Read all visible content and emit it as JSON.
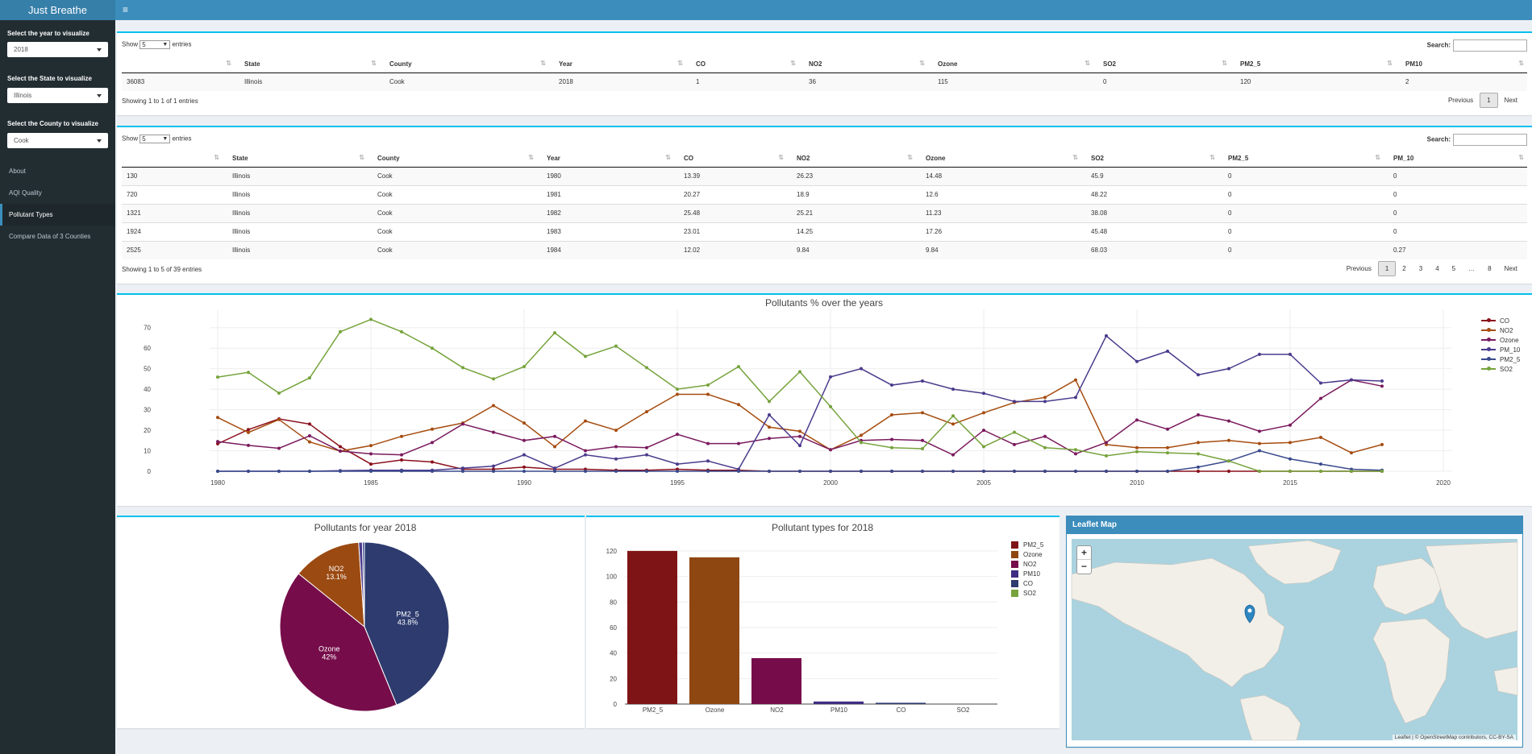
{
  "app": {
    "title": "Just Breathe"
  },
  "sidebar": {
    "year_label": "Select the year to visualize",
    "year_value": "2018",
    "state_label": "Select the State to visualize",
    "state_value": "Illinois",
    "county_label": "Select the County to visualize",
    "county_value": "Cook",
    "menu": [
      {
        "label": "About"
      },
      {
        "label": "AQI Quality"
      },
      {
        "label": "Pollutant Types"
      },
      {
        "label": "Compare Data of 3 Counties"
      }
    ]
  },
  "table1": {
    "show": "Show",
    "entries_value": "5",
    "entries": "entries",
    "search": "Search:",
    "headers": [
      "",
      "State",
      "County",
      "Year",
      "CO",
      "NO2",
      "Ozone",
      "SO2",
      "PM2_5",
      "PM10"
    ],
    "rows": [
      [
        "36083",
        "Illinois",
        "Cook",
        "2018",
        "1",
        "36",
        "115",
        "0",
        "120",
        "2"
      ]
    ],
    "info": "Showing 1 to 1 of 1 entries",
    "pager": [
      "Previous",
      "1",
      "Next"
    ]
  },
  "table2": {
    "show": "Show",
    "entries_value": "5",
    "entries": "entries",
    "search": "Search:",
    "headers": [
      "",
      "State",
      "County",
      "Year",
      "CO",
      "NO2",
      "Ozone",
      "SO2",
      "PM2_5",
      "PM_10"
    ],
    "rows": [
      [
        "130",
        "Illinois",
        "Cook",
        "1980",
        "13.39",
        "26.23",
        "14.48",
        "45.9",
        "0",
        "0"
      ],
      [
        "720",
        "Illinois",
        "Cook",
        "1981",
        "20.27",
        "18.9",
        "12.6",
        "48.22",
        "0",
        "0"
      ],
      [
        "1321",
        "Illinois",
        "Cook",
        "1982",
        "25.48",
        "25.21",
        "11.23",
        "38.08",
        "0",
        "0"
      ],
      [
        "1924",
        "Illinois",
        "Cook",
        "1983",
        "23.01",
        "14.25",
        "17.26",
        "45.48",
        "0",
        "0"
      ],
      [
        "2525",
        "Illinois",
        "Cook",
        "1984",
        "12.02",
        "9.84",
        "9.84",
        "68.03",
        "0",
        "0.27"
      ]
    ],
    "info": "Showing 1 to 5 of 39 entries",
    "pager": [
      "Previous",
      "1",
      "2",
      "3",
      "4",
      "5",
      "…",
      "8",
      "Next"
    ]
  },
  "chart_data": [
    {
      "type": "line",
      "title": "Pollutants % over the years",
      "xlim": [
        1980,
        2020
      ],
      "ylim": [
        0,
        75
      ],
      "xticks": [
        1980,
        1985,
        1990,
        1995,
        2000,
        2005,
        2010,
        2015,
        2020
      ],
      "yticks": [
        0,
        10,
        20,
        30,
        40,
        50,
        60,
        70
      ],
      "legend_position": "top-right",
      "x": [
        1980,
        1981,
        1982,
        1983,
        1984,
        1985,
        1986,
        1987,
        1988,
        1989,
        1990,
        1991,
        1992,
        1993,
        1994,
        1995,
        1996,
        1997,
        1998,
        1999,
        2000,
        2001,
        2002,
        2003,
        2004,
        2005,
        2006,
        2007,
        2008,
        2009,
        2010,
        2011,
        2012,
        2013,
        2014,
        2015,
        2016,
        2017,
        2018
      ],
      "series": [
        {
          "name": "CO",
          "color": "#8b0f1c",
          "values": [
            13.4,
            20.3,
            25.5,
            23.0,
            12.0,
            3.5,
            5.5,
            4.5,
            1,
            1,
            2,
            1,
            1,
            0.5,
            0.5,
            1,
            0.5,
            0.5,
            0,
            0,
            0,
            0,
            0,
            0,
            0,
            0,
            0,
            0,
            0,
            0,
            0,
            0,
            0,
            0,
            0,
            0,
            0,
            0,
            0
          ]
        },
        {
          "name": "NO2",
          "color": "#a64d10",
          "values": [
            26.2,
            18.9,
            25.2,
            14.3,
            9.8,
            12.5,
            17,
            20.5,
            23.5,
            32,
            23.5,
            12,
            24.5,
            20,
            29,
            37.5,
            37.5,
            32.5,
            21.5,
            19.5,
            10.5,
            17.5,
            27.5,
            28.5,
            23,
            28.5,
            33.5,
            36,
            44.5,
            13,
            11.5,
            11.5,
            14,
            15,
            13.5,
            14,
            16.5,
            9,
            13
          ]
        },
        {
          "name": "Ozone",
          "color": "#7a1b5e",
          "values": [
            14.5,
            12.6,
            11.2,
            17.3,
            9.8,
            8.5,
            8,
            14,
            23,
            19,
            15,
            17,
            10,
            12,
            11.5,
            18,
            13.5,
            13.5,
            16,
            17,
            10.5,
            15,
            15.5,
            15,
            8,
            20,
            13,
            17,
            8.5,
            14,
            25,
            20.5,
            27.5,
            24.5,
            19.5,
            22.5,
            35.5,
            44.5,
            41.5
          ]
        },
        {
          "name": "PM_10",
          "color": "#4b3a8c",
          "values": [
            0,
            0,
            0,
            0,
            0.3,
            0.5,
            0.5,
            0.5,
            1.5,
            2.5,
            8,
            1.5,
            8,
            6,
            8,
            3.5,
            5,
            1,
            27.5,
            12.5,
            46,
            50,
            42,
            44,
            40,
            38,
            34,
            34,
            36,
            66,
            53.5,
            58.5,
            47,
            50,
            57,
            57,
            43,
            44.5,
            44
          ]
        },
        {
          "name": "PM2_5",
          "color": "#3a4a8c",
          "values": [
            0,
            0,
            0,
            0,
            0,
            0,
            0,
            0,
            0,
            0,
            0,
            0,
            0,
            0,
            0,
            0,
            0,
            0,
            0,
            0,
            0,
            0,
            0,
            0,
            0,
            0,
            0,
            0,
            0,
            0,
            0,
            0,
            2,
            5,
            10,
            6,
            3.5,
            1,
            0.5
          ]
        },
        {
          "name": "SO2",
          "color": "#76a33c",
          "values": [
            45.9,
            48.2,
            38.1,
            45.5,
            68,
            74,
            68,
            60,
            50.5,
            45,
            51,
            67.5,
            56,
            61,
            50.5,
            40,
            42,
            51,
            34,
            48.5,
            31.5,
            14,
            11.5,
            11,
            27,
            12,
            19,
            11.5,
            10.5,
            7.5,
            9.5,
            9,
            8.5,
            5,
            0,
            0,
            0,
            0,
            0
          ]
        }
      ]
    },
    {
      "type": "pie",
      "title": "Pollutants for year  2018",
      "slices": [
        {
          "label": "PM2_5",
          "value": 43.8,
          "text": "43.8%",
          "color": "#2d3b6e"
        },
        {
          "label": "Ozone",
          "value": 42.0,
          "text": "42%",
          "color": "#760d4a"
        },
        {
          "label": "NO2",
          "value": 13.1,
          "text": "13.1%",
          "color": "#9b4a12"
        },
        {
          "label": "PM10",
          "value": 0.7,
          "text": "",
          "color": "#4b3a8c"
        },
        {
          "label": "CO",
          "value": 0.4,
          "text": "",
          "color": "#3a4a8c"
        },
        {
          "label": "SO2",
          "value": 0.0,
          "text": "",
          "color": "#76a33c"
        }
      ]
    },
    {
      "type": "bar",
      "title": "Pollutant types for 2018",
      "categories": [
        "PM2_5",
        "Ozone",
        "NO2",
        "PM10",
        "CO",
        "SO2"
      ],
      "values": [
        120,
        115,
        36,
        2,
        1,
        0
      ],
      "colors": [
        "#7f1416",
        "#8f4711",
        "#760d4a",
        "#3e2d82",
        "#2d3b6e",
        "#76a33c"
      ],
      "ylim": [
        0,
        125
      ],
      "yticks": [
        0,
        20,
        40,
        60,
        80,
        100,
        120
      ],
      "legend": [
        "PM2_5",
        "Ozone",
        "NO2",
        "PM10",
        "CO",
        "SO2"
      ],
      "legend_position": "top-right"
    }
  ],
  "map": {
    "title": "Leaflet Map",
    "zoom_in": "+",
    "zoom_out": "−",
    "attribution": "Leaflet | © OpenStreetMap contributors, CC-BY-SA",
    "water": "#aad3df",
    "land": "#f2efe9"
  }
}
